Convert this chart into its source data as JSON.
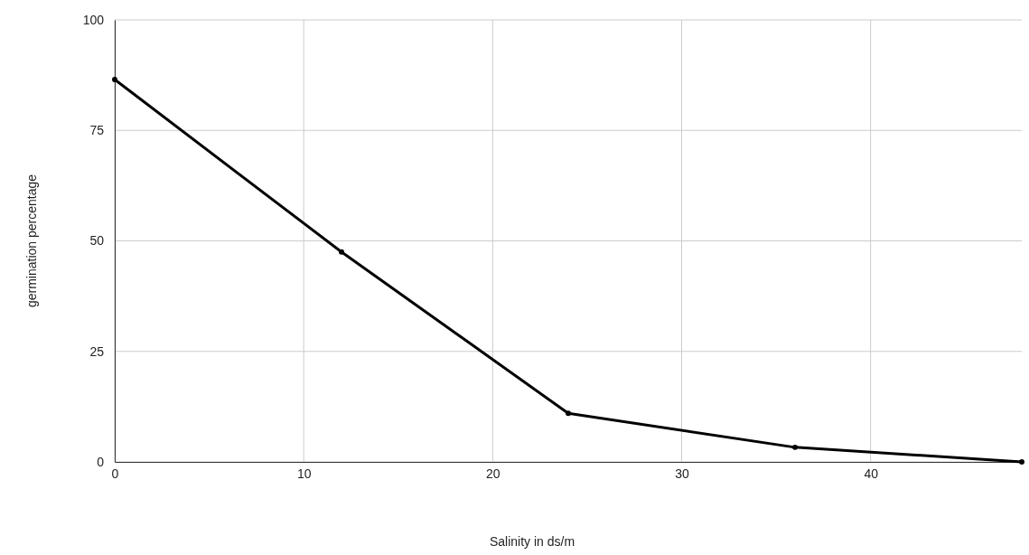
{
  "chart_data": {
    "type": "line",
    "xlabel": "Salinity in ds/m",
    "ylabel": "germination percentage",
    "x": [
      0,
      12,
      24,
      36,
      48
    ],
    "series": [
      {
        "color": "#000000",
        "values": [
          86.5,
          47.5,
          11,
          3.3,
          0
        ]
      }
    ],
    "xlim": [
      0,
      48
    ],
    "xticks": [
      0,
      10,
      20,
      30,
      40
    ],
    "ylim": [
      0,
      100
    ],
    "yticks": [
      0,
      25,
      50,
      75,
      100
    ],
    "grid": true,
    "marker": "circle",
    "line_style": "solid"
  }
}
